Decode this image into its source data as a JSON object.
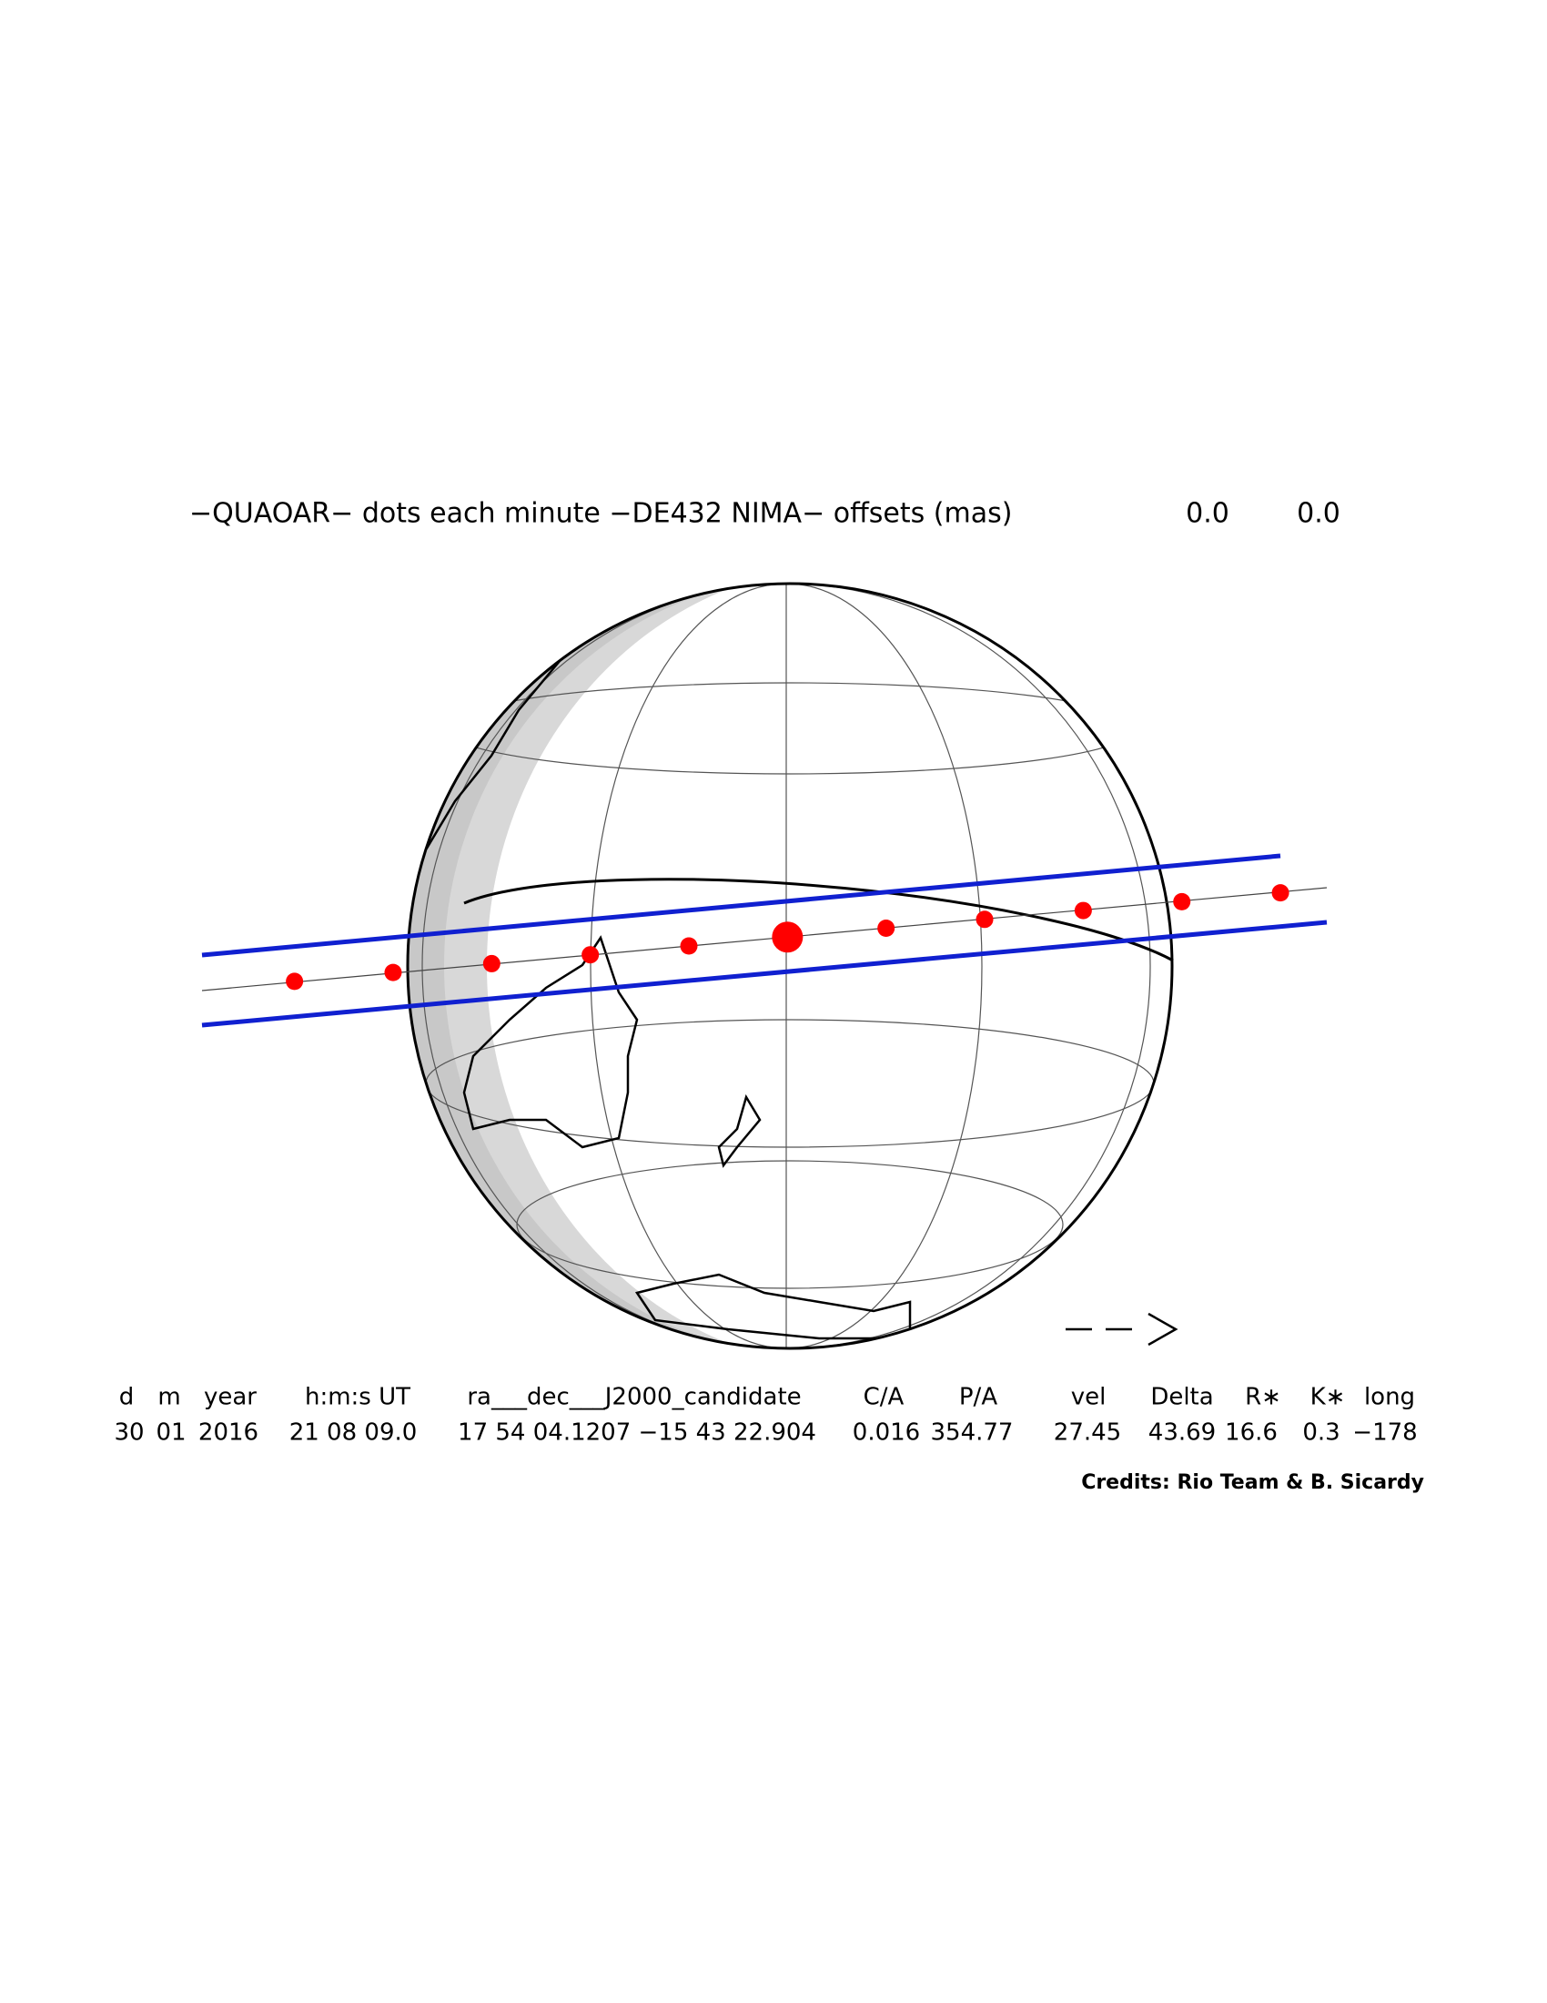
{
  "title": "−QUAOAR− dots each minute −DE432 NIMA− offsets (mas)",
  "offsets": [
    "0.0",
    "0.0"
  ],
  "table": {
    "header": [
      "d",
      "m",
      "year",
      "h:m:s UT",
      "ra___dec___J2000_candidate",
      "C/A",
      "P/A",
      "vel",
      "Delta",
      "R∗",
      "K∗",
      "long"
    ],
    "rows": [
      [
        "30",
        "01",
        "2016",
        "21 08 09.0",
        "17 54 04.1207 −15 43 22.904",
        "0.016",
        "354.77",
        "27.45",
        "43.69",
        "16.6",
        "0.3",
        "−178"
      ]
    ]
  },
  "credits": "Credits: Rio Team & B. Sicardy"
}
